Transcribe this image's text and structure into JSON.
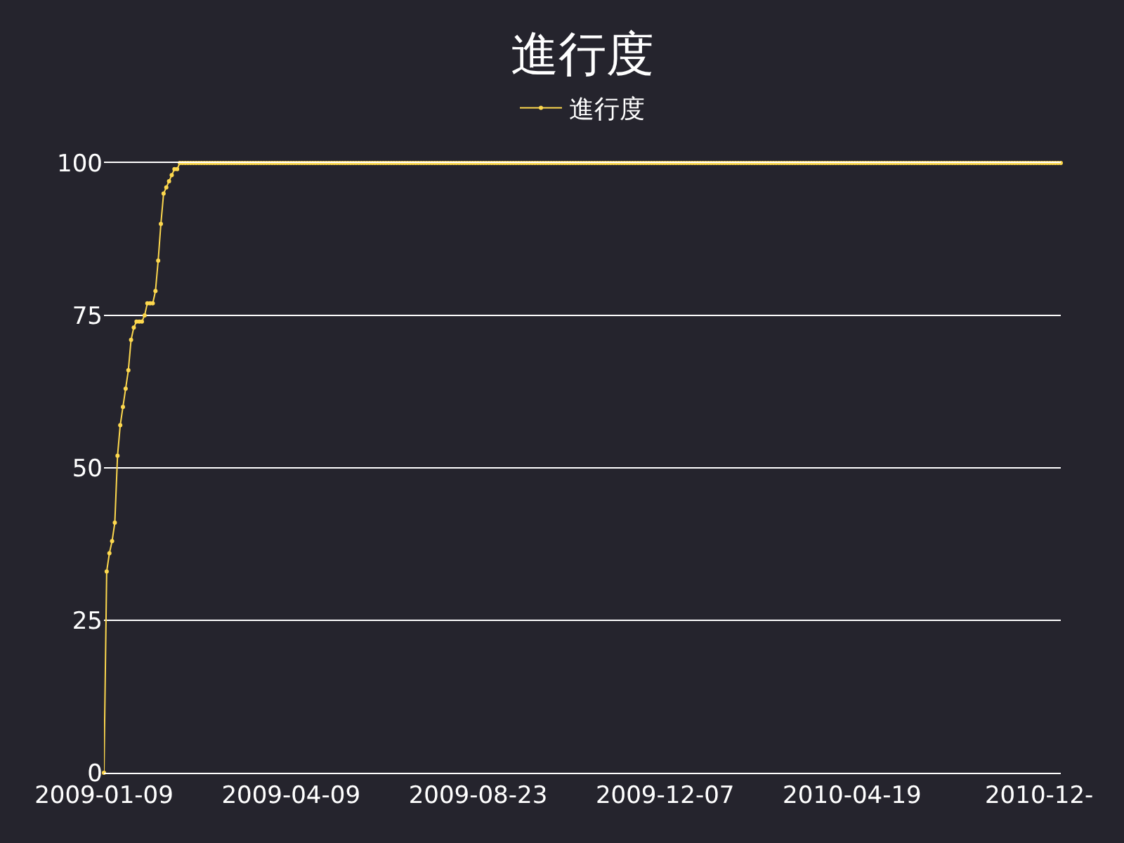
{
  "chart_data": {
    "type": "line",
    "title": "進行度",
    "categories": [
      "2009-01-09",
      null,
      null,
      null,
      null,
      null,
      null,
      null,
      null,
      null,
      null,
      null,
      null,
      null,
      null,
      null,
      null,
      null,
      null,
      null,
      null,
      null,
      null,
      null,
      null,
      null,
      null,
      null,
      null,
      null,
      null,
      null,
      null,
      null,
      null,
      null,
      null,
      null,
      null,
      null,
      null,
      null,
      null,
      null,
      null,
      null,
      null,
      null,
      null,
      null,
      null,
      null,
      null,
      null,
      null,
      null,
      null,
      null,
      null,
      null,
      null,
      null,
      null,
      null,
      null,
      null,
      null,
      null,
      null,
      "2009-04-09",
      null,
      null,
      null,
      null,
      null,
      null,
      null,
      null,
      null,
      null,
      null,
      null,
      null,
      null,
      null,
      null,
      null,
      null,
      null,
      null,
      null,
      null,
      null,
      null,
      null,
      null,
      null,
      null,
      null,
      null,
      null,
      null,
      null,
      null,
      null,
      null,
      null,
      null,
      null,
      null,
      null,
      null,
      null,
      null,
      null,
      null,
      null,
      null,
      null,
      null,
      null,
      null,
      null,
      null,
      null,
      null,
      null,
      null,
      null,
      null,
      null,
      null,
      null,
      null,
      null,
      null,
      null,
      null,
      "2009-08-23",
      null,
      null,
      null,
      null,
      null,
      null,
      null,
      null,
      null,
      null,
      null,
      null,
      null,
      null,
      null,
      null,
      null,
      null,
      null,
      null,
      null,
      null,
      null,
      null,
      null,
      null,
      null,
      null,
      null,
      null,
      null,
      null,
      null,
      null,
      null,
      null,
      null,
      null,
      null,
      null,
      null,
      null,
      null,
      null,
      null,
      null,
      null,
      null,
      null,
      null,
      null,
      null,
      null,
      null,
      null,
      null,
      null,
      null,
      null,
      null,
      null,
      null,
      null,
      null,
      null,
      null,
      null,
      null,
      "2009-12-07",
      null,
      null,
      null,
      null,
      null,
      null,
      null,
      null,
      null,
      null,
      null,
      null,
      null,
      null,
      null,
      null,
      null,
      null,
      null,
      null,
      null,
      null,
      null,
      null,
      null,
      null,
      null,
      null,
      null,
      null,
      null,
      null,
      null,
      null,
      null,
      null,
      null,
      null,
      null,
      null,
      null,
      null,
      null,
      null,
      null,
      null,
      null,
      null,
      null,
      null,
      null,
      null,
      null,
      null,
      null,
      null,
      null,
      null,
      null,
      null,
      null,
      null,
      null,
      null,
      null,
      null,
      null,
      null,
      "2010-04-19",
      null,
      null,
      null,
      null,
      null,
      null,
      null,
      null,
      null,
      null,
      null,
      null,
      null,
      null,
      null,
      null,
      null,
      null,
      null,
      null,
      null,
      null,
      null,
      null,
      null,
      null,
      null,
      null,
      null,
      null,
      null,
      null,
      null,
      null,
      null,
      null,
      null,
      null,
      null,
      null,
      null,
      null,
      null,
      null,
      null,
      null,
      null,
      null,
      null,
      null,
      null,
      null,
      null,
      null,
      null,
      null,
      null,
      null,
      null,
      null,
      null,
      null,
      null,
      null,
      null,
      null,
      null,
      null,
      "2010-12-",
      null,
      null,
      null,
      null,
      null,
      null,
      null,
      null
    ],
    "series": [
      {
        "name": "進行度",
        "color": "#fdd84e",
        "values": [
          0,
          33,
          36,
          38,
          41,
          52,
          57,
          60,
          63,
          66,
          71,
          73,
          74,
          74,
          74,
          75,
          77,
          77,
          77,
          79,
          84,
          90,
          95,
          96,
          97,
          98,
          99,
          99,
          100,
          100,
          100,
          100,
          100,
          100,
          100,
          100,
          100,
          100,
          100,
          100,
          100,
          100,
          100,
          100,
          100,
          100,
          100,
          100,
          100,
          100,
          100,
          100,
          100,
          100,
          100,
          100,
          100,
          100,
          100,
          100,
          100,
          100,
          100,
          100,
          100,
          100,
          100,
          100,
          100,
          100,
          100,
          100,
          100,
          100,
          100,
          100,
          100,
          100,
          100,
          100,
          100,
          100,
          100,
          100,
          100,
          100,
          100,
          100,
          100,
          100,
          100,
          100,
          100,
          100,
          100,
          100,
          100,
          100,
          100,
          100,
          100,
          100,
          100,
          100,
          100,
          100,
          100,
          100,
          100,
          100,
          100,
          100,
          100,
          100,
          100,
          100,
          100,
          100,
          100,
          100,
          100,
          100,
          100,
          100,
          100,
          100,
          100,
          100,
          100,
          100,
          100,
          100,
          100,
          100,
          100,
          100,
          100,
          100,
          100,
          100,
          100,
          100,
          100,
          100,
          100,
          100,
          100,
          100,
          100,
          100,
          100,
          100,
          100,
          100,
          100,
          100,
          100,
          100,
          100,
          100,
          100,
          100,
          100,
          100,
          100,
          100,
          100,
          100,
          100,
          100,
          100,
          100,
          100,
          100,
          100,
          100,
          100,
          100,
          100,
          100,
          100,
          100,
          100,
          100,
          100,
          100,
          100,
          100,
          100,
          100,
          100,
          100,
          100,
          100,
          100,
          100,
          100,
          100,
          100,
          100,
          100,
          100,
          100,
          100,
          100,
          100,
          100,
          100,
          100,
          100,
          100,
          100,
          100,
          100,
          100,
          100,
          100,
          100,
          100,
          100,
          100,
          100,
          100,
          100,
          100,
          100,
          100,
          100,
          100,
          100,
          100,
          100,
          100,
          100,
          100,
          100,
          100,
          100,
          100,
          100,
          100,
          100,
          100,
          100,
          100,
          100,
          100,
          100,
          100,
          100,
          100,
          100,
          100,
          100,
          100,
          100,
          100,
          100,
          100,
          100,
          100,
          100,
          100,
          100,
          100,
          100,
          100,
          100,
          100,
          100,
          100,
          100,
          100,
          100,
          100,
          100,
          100,
          100,
          100,
          100,
          100,
          100,
          100,
          100,
          100,
          100,
          100,
          100,
          100,
          100,
          100,
          100,
          100,
          100,
          100,
          100,
          100,
          100,
          100,
          100,
          100,
          100,
          100,
          100,
          100,
          100,
          100,
          100,
          100,
          100,
          100,
          100,
          100,
          100,
          100,
          100,
          100,
          100,
          100,
          100,
          100,
          100,
          100,
          100,
          100,
          100,
          100,
          100,
          100,
          100,
          100,
          100,
          100,
          100,
          100,
          100,
          100,
          100,
          100,
          100,
          100,
          100,
          100,
          100,
          100,
          100,
          100,
          100,
          100,
          100,
          100,
          100,
          100,
          100
        ]
      }
    ],
    "ylim": [
      0,
      100
    ],
    "yticks": [
      0,
      25,
      50,
      75,
      100
    ],
    "grid": "y",
    "legend": "top",
    "marker": "circle",
    "line_style": "solid"
  }
}
